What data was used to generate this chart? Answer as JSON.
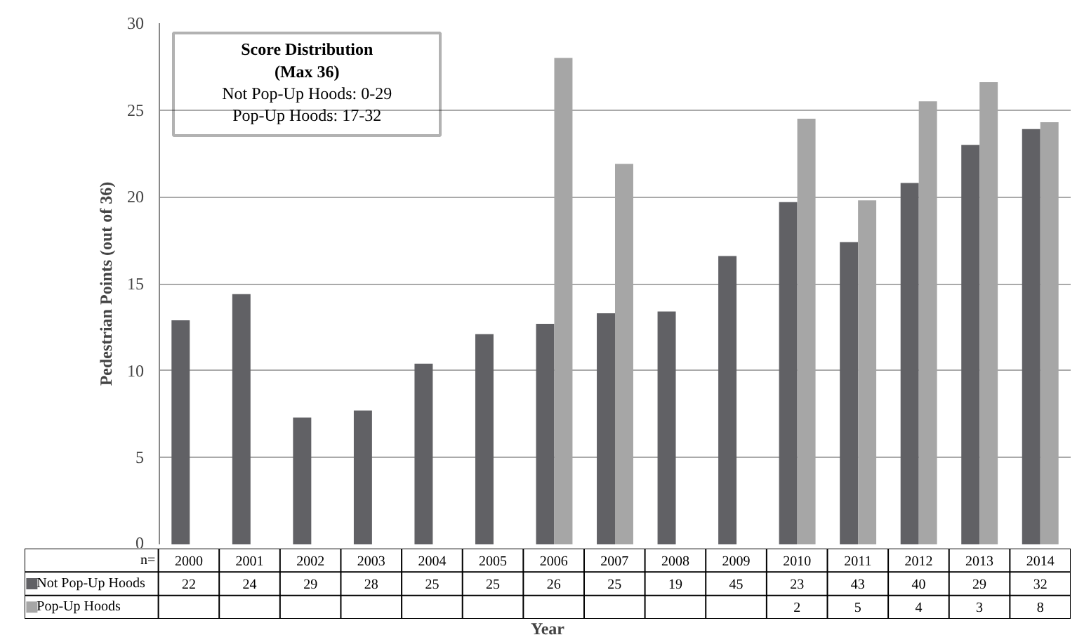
{
  "chart_data": {
    "type": "bar",
    "ylabel": "Pedestrian Points (out of 36)",
    "xlabel": "Year",
    "categories": [
      "2000",
      "2001",
      "2002",
      "2003",
      "2004",
      "2005",
      "2006",
      "2007",
      "2008",
      "2009",
      "2010",
      "2011",
      "2012",
      "2013",
      "2014"
    ],
    "series": [
      {
        "name": "Not Pop-Up Hoods",
        "color": "#616165",
        "values": [
          12.9,
          14.4,
          7.3,
          7.7,
          10.4,
          12.1,
          12.7,
          13.3,
          13.4,
          16.6,
          19.7,
          17.4,
          20.8,
          23.0,
          23.9
        ]
      },
      {
        "name": "Pop-Up Hoods",
        "color": "#a6a6a6",
        "values": [
          null,
          null,
          null,
          null,
          null,
          null,
          28.0,
          21.9,
          null,
          null,
          24.5,
          19.8,
          25.5,
          26.6,
          24.3
        ]
      }
    ],
    "annotations": [
      "Score Distribution",
      "(Max 36)",
      "Not Pop-Up Hoods: 0-29",
      "Pop-Up Hoods: 17-32",
      "n=",
      "22",
      "24",
      "29",
      "28",
      "25",
      "25",
      "26",
      "25",
      "19",
      "45",
      "23",
      "43",
      "40",
      "29",
      "32",
      "2",
      "5",
      "4",
      "3",
      "8"
    ],
    "ylim": [
      0,
      30
    ],
    "yticks": [
      0,
      5,
      10,
      15,
      20,
      25,
      30
    ],
    "grid": "y",
    "legend": "bottom"
  }
}
